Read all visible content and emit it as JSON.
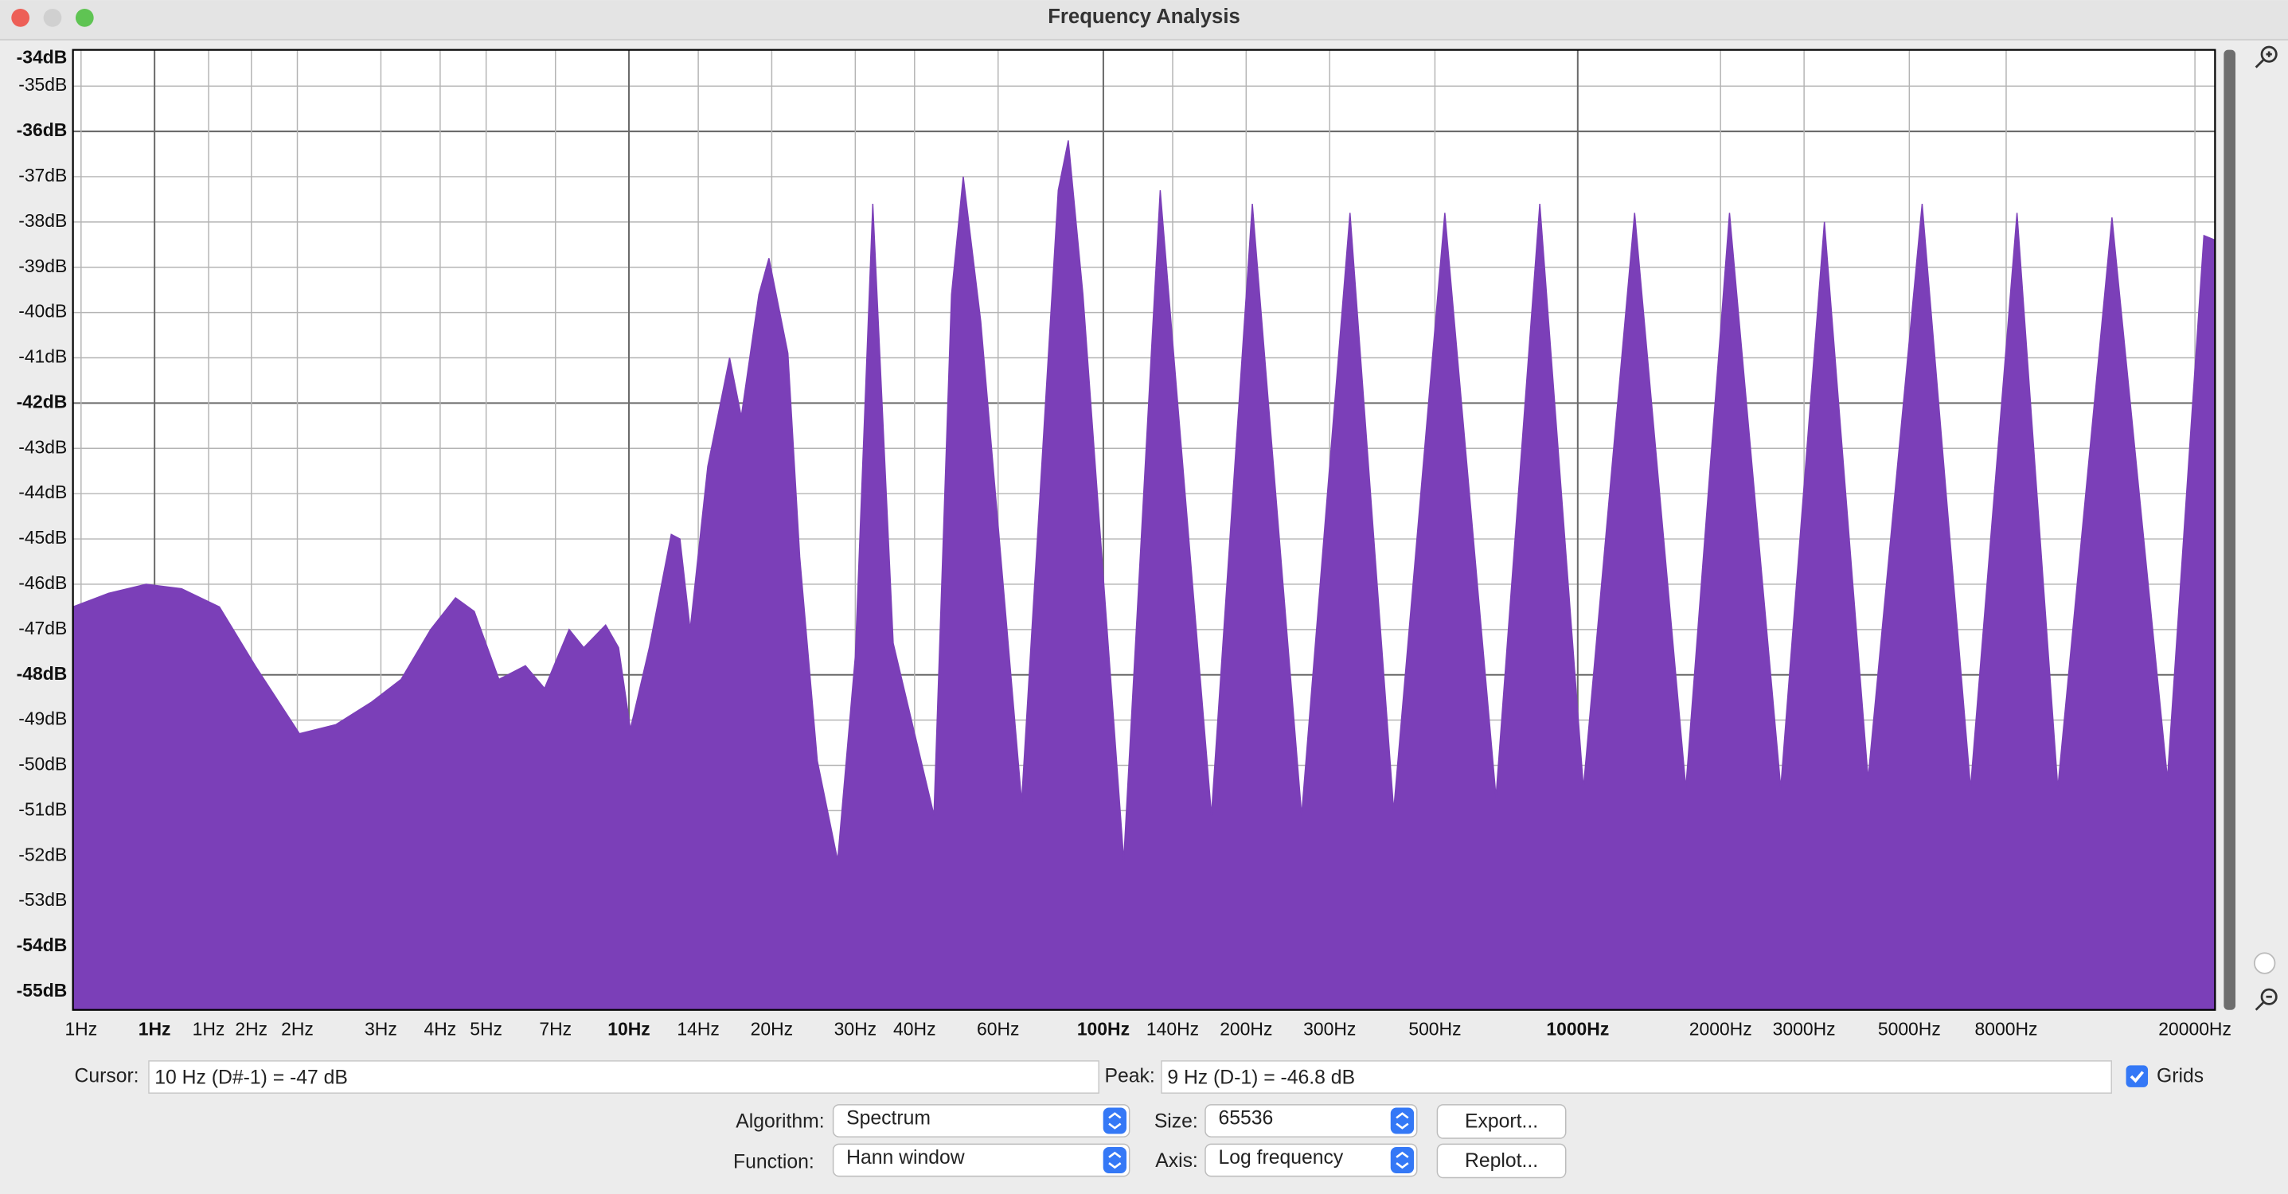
{
  "window": {
    "title": "Frequency Analysis"
  },
  "chart_data": {
    "type": "area",
    "xscale": "log",
    "grid": true,
    "color": "#7b3fb8",
    "x": [
      0.673,
      0.8,
      0.96,
      1.14,
      1.37,
      1.63,
      2.02,
      2.41,
      2.87,
      3.31,
      3.82,
      4.31,
      4.72,
      5.32,
      6.05,
      6.64,
      7.48,
      8.03,
      8.93,
      9.51,
      10.07,
      11.04,
      12.28,
      12.81,
      13.46,
      14.66,
      16.3,
      17.25,
      18.79,
      19.73,
      21.63,
      22.91,
      24.95,
      27.54,
      30.0,
      32.66,
      36.06,
      43.95,
      47.86,
      50.66,
      55.16,
      67.26,
      80.35,
      84.36,
      90.57,
      110.4,
      131.8,
      169.0,
      206.1,
      261.8,
      331.1,
      409.3,
      524.6,
      672.5,
      831.8,
      1028,
      1318,
      1690,
      2089,
      2679,
      3311,
      4093,
      5321,
      6730,
      8433,
      10280,
      13370,
      17500,
      20890,
      22050
    ],
    "values": [
      -46.5,
      -46.2,
      -46.0,
      -46.1,
      -46.5,
      -47.8,
      -49.3,
      -49.1,
      -48.6,
      -48.1,
      -47.0,
      -46.3,
      -46.6,
      -48.1,
      -47.8,
      -48.3,
      -47.0,
      -47.4,
      -46.9,
      -47.4,
      -49.2,
      -47.4,
      -44.9,
      -45.0,
      -47.0,
      -43.4,
      -41.0,
      -42.3,
      -39.6,
      -38.8,
      -40.9,
      -45.4,
      -49.9,
      -52.1,
      -47.6,
      -37.6,
      -47.3,
      -51.1,
      -39.6,
      -37.0,
      -40.2,
      -50.8,
      -37.3,
      -36.2,
      -39.6,
      -52.1,
      -37.3,
      -51.1,
      -37.6,
      -51.1,
      -37.8,
      -51.0,
      -37.8,
      -50.7,
      -37.6,
      -50.5,
      -37.8,
      -50.5,
      -37.8,
      -50.5,
      -38.0,
      -50.3,
      -37.6,
      -50.5,
      -37.8,
      -50.5,
      -37.9,
      -50.3,
      -38.3,
      -38.4
    ],
    "xlim": [
      0.673,
      22050
    ],
    "ylim": [
      -55.4,
      -34.2
    ],
    "xticks": [
      {
        "value": 0.7,
        "label": "1Hz"
      },
      {
        "value": 1,
        "label": "1Hz"
      },
      {
        "value": 1.3,
        "label": "1Hz"
      },
      {
        "value": 1.6,
        "label": "2Hz"
      },
      {
        "value": 2,
        "label": "2Hz"
      },
      {
        "value": 3,
        "label": "3Hz"
      },
      {
        "value": 4,
        "label": "4Hz"
      },
      {
        "value": 5,
        "label": "5Hz"
      },
      {
        "value": 7,
        "label": "7Hz"
      },
      {
        "value": 10,
        "label": "10Hz"
      },
      {
        "value": 14,
        "label": "14Hz"
      },
      {
        "value": 20,
        "label": "20Hz"
      },
      {
        "value": 30,
        "label": "30Hz"
      },
      {
        "value": 40,
        "label": "40Hz"
      },
      {
        "value": 60,
        "label": "60Hz"
      },
      {
        "value": 100,
        "label": "100Hz"
      },
      {
        "value": 140,
        "label": "140Hz"
      },
      {
        "value": 200,
        "label": "200Hz"
      },
      {
        "value": 300,
        "label": "300Hz"
      },
      {
        "value": 500,
        "label": "500Hz"
      },
      {
        "value": 1000,
        "label": "1000Hz"
      },
      {
        "value": 2000,
        "label": "2000Hz"
      },
      {
        "value": 3000,
        "label": "3000Hz"
      },
      {
        "value": 5000,
        "label": "5000Hz"
      },
      {
        "value": 8000,
        "label": "8000Hz"
      },
      {
        "value": 20000,
        "label": "20000Hz"
      }
    ],
    "yticks": [
      {
        "value": -34,
        "label": "-34dB"
      },
      {
        "value": -35,
        "label": "-35dB"
      },
      {
        "value": -36,
        "label": "-36dB"
      },
      {
        "value": -37,
        "label": "-37dB"
      },
      {
        "value": -38,
        "label": "-38dB"
      },
      {
        "value": -39,
        "label": "-39dB"
      },
      {
        "value": -40,
        "label": "-40dB"
      },
      {
        "value": -41,
        "label": "-41dB"
      },
      {
        "value": -42,
        "label": "-42dB"
      },
      {
        "value": -43,
        "label": "-43dB"
      },
      {
        "value": -44,
        "label": "-44dB"
      },
      {
        "value": -45,
        "label": "-45dB"
      },
      {
        "value": -46,
        "label": "-46dB"
      },
      {
        "value": -47,
        "label": "-47dB"
      },
      {
        "value": -48,
        "label": "-48dB"
      },
      {
        "value": -49,
        "label": "-49dB"
      },
      {
        "value": -50,
        "label": "-50dB"
      },
      {
        "value": -51,
        "label": "-51dB"
      },
      {
        "value": -52,
        "label": "-52dB"
      },
      {
        "value": -53,
        "label": "-53dB"
      },
      {
        "value": -54,
        "label": "-54dB"
      },
      {
        "value": -55,
        "label": "-55dB"
      }
    ]
  },
  "controls": {
    "cursor_label": "Cursor:",
    "cursor_value": "10 Hz (D#-1) = -47 dB",
    "peak_label": "Peak:",
    "peak_value": "9 Hz (D-1) = -46.8 dB",
    "grids_label": "Grids",
    "algorithm_label": "Algorithm:",
    "algorithm_value": "Spectrum",
    "size_label": "Size:",
    "size_value": "65536",
    "function_label": "Function:",
    "function_value": "Hann window",
    "axis_label": "Axis:",
    "axis_value": "Log frequency",
    "export_button": "Export...",
    "replot_button": "Replot..."
  }
}
